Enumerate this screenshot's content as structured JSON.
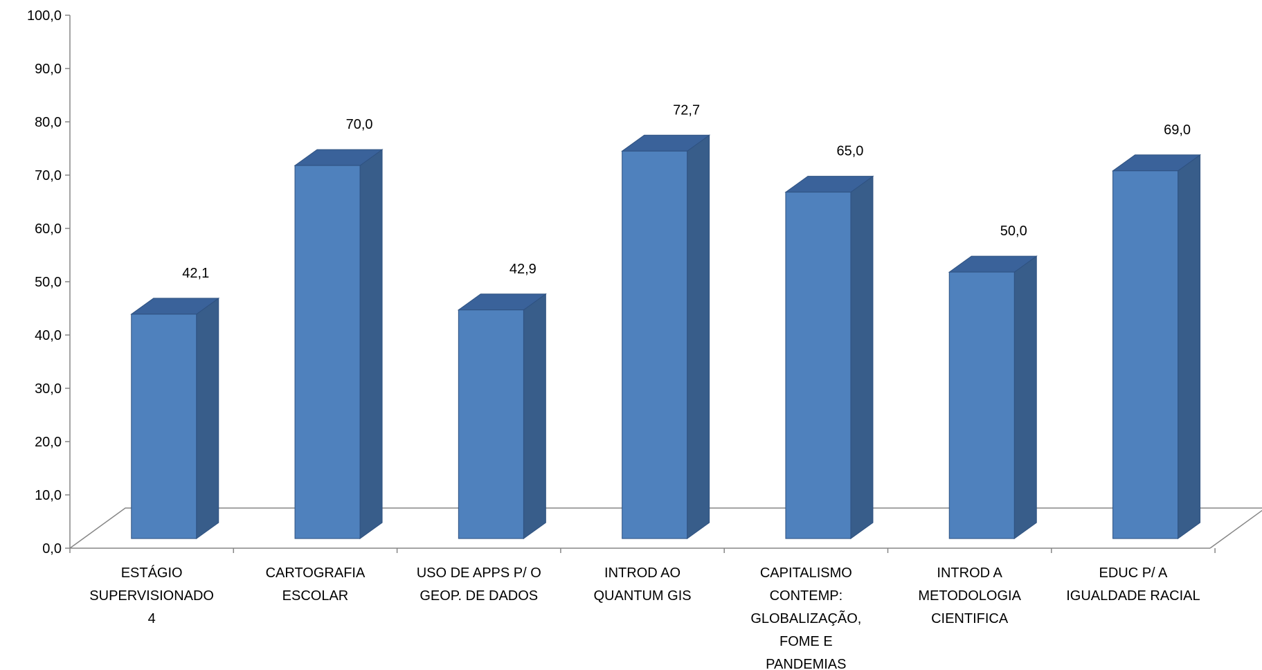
{
  "chart_data": {
    "type": "bar",
    "style": "3d-column",
    "categories": [
      [
        "ESTÁGIO",
        "SUPERVISIONADO",
        "4"
      ],
      [
        "CARTOGRAFIA",
        "ESCOLAR"
      ],
      [
        "USO DE APPS P/ O",
        "GEOP. DE DADOS"
      ],
      [
        "INTROD AO",
        "QUANTUM GIS"
      ],
      [
        "CAPITALISMO",
        "CONTEMP:",
        "GLOBALIZAÇÃO,",
        "FOME E",
        "PANDEMIAS"
      ],
      [
        "INTROD A",
        "METODOLOGIA",
        "CIENTIFICA"
      ],
      [
        "EDUC P/ A",
        "IGUALDADE RACIAL"
      ]
    ],
    "values": [
      42.1,
      70.0,
      42.9,
      72.7,
      65.0,
      50.0,
      69.0
    ],
    "data_labels": [
      "42,1",
      "70,0",
      "42,9",
      "72,7",
      "65,0",
      "50,0",
      "69,0"
    ],
    "yticks": [
      "0,0",
      "10,0",
      "20,0",
      "30,0",
      "40,0",
      "50,0",
      "60,0",
      "70,0",
      "80,0",
      "90,0",
      "100,0"
    ],
    "ylim": [
      0,
      100
    ],
    "title": "",
    "xlabel": "",
    "ylabel": "",
    "grid": false,
    "legend": "none",
    "colors": {
      "bar_front": "#4F81BD",
      "bar_side": "#385D8A",
      "bar_top": "#3A629A",
      "bar_edge": "#2F5281",
      "axis": "#868686"
    }
  }
}
